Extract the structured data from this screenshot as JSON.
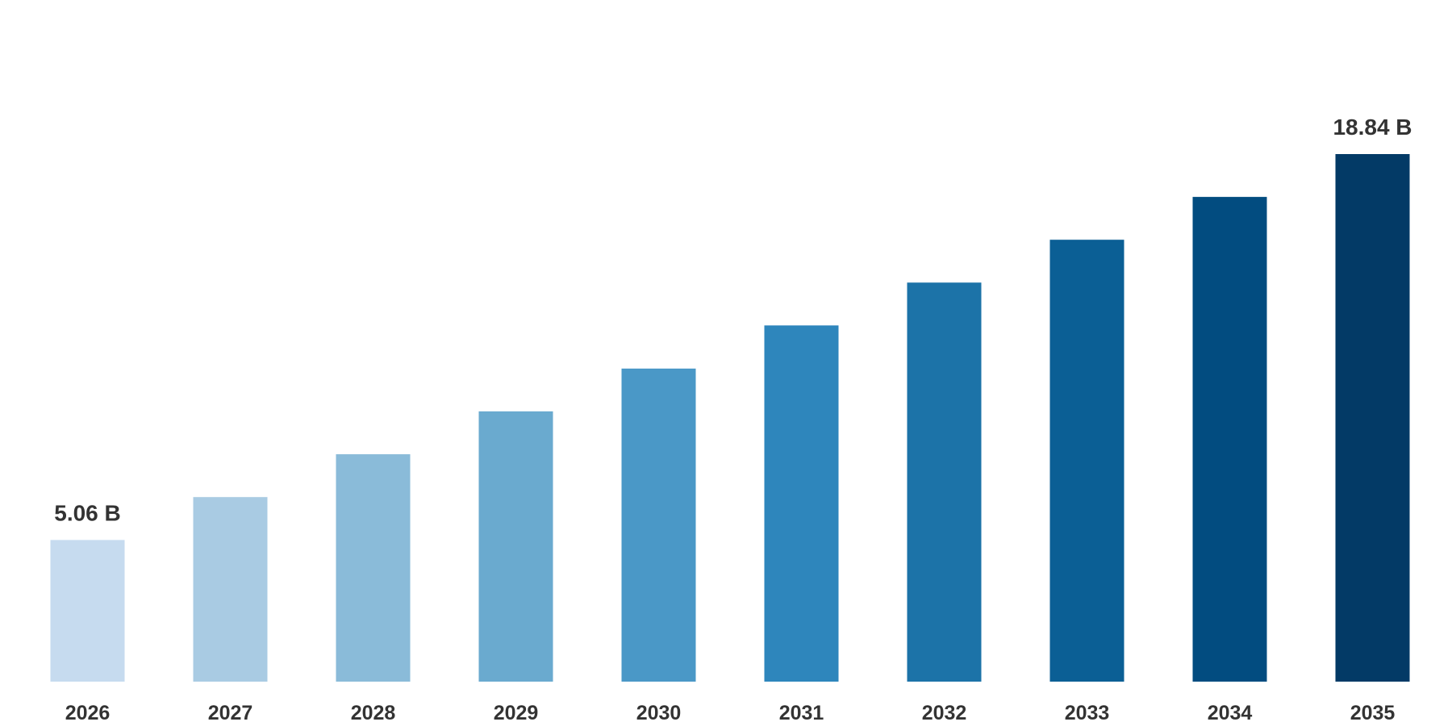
{
  "chart_data": {
    "type": "bar",
    "categories": [
      "2026",
      "2027",
      "2028",
      "2029",
      "2030",
      "2031",
      "2032",
      "2033",
      "2034",
      "2035"
    ],
    "values": [
      5.06,
      6.59,
      8.12,
      9.65,
      11.18,
      12.72,
      14.25,
      15.78,
      17.31,
      18.84
    ],
    "colors": [
      "#c6dbef",
      "#a9cbe3",
      "#8abbd9",
      "#6aaacf",
      "#4a98c7",
      "#2e86bc",
      "#1c73a8",
      "#0b5f95",
      "#024c80",
      "#033a66"
    ],
    "title": "",
    "xlabel": "",
    "ylabel": "",
    "ylim": [
      0,
      18.84
    ],
    "grid": false,
    "legend": "none",
    "data_labels": [
      {
        "index": 0,
        "text": "5.06 B"
      },
      {
        "index": 9,
        "text": "18.84 B"
      }
    ]
  }
}
